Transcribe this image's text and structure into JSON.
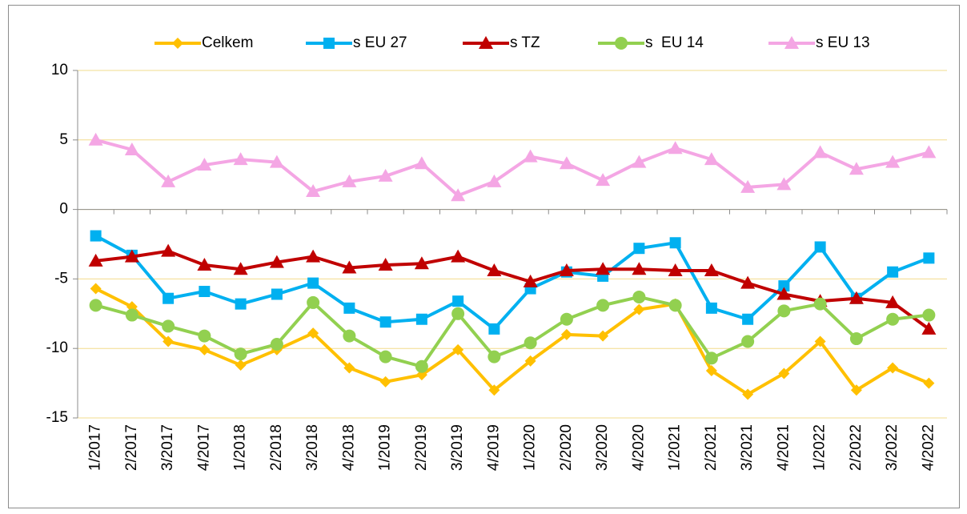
{
  "chart_data": {
    "type": "line",
    "categories": [
      "1/2017",
      "2/2017",
      "3/2017",
      "4/2017",
      "1/2018",
      "2/2018",
      "3/2018",
      "4/2018",
      "1/2019",
      "2/2019",
      "3/2019",
      "4/2019",
      "1/2020",
      "2/2020",
      "3/2020",
      "4/2020",
      "1/2021",
      "2/2021",
      "3/2021",
      "4/2021",
      "1/2022",
      "2/2022",
      "3/2022",
      "4/2022"
    ],
    "series": [
      {
        "name": "Celkem",
        "color": "#ffc000",
        "marker": "diamond",
        "values": [
          -5.7,
          -7.0,
          -9.5,
          -10.1,
          -11.2,
          -10.1,
          -8.9,
          -11.4,
          -12.4,
          -11.9,
          -10.1,
          -13.0,
          -10.9,
          -9.0,
          -9.1,
          -7.2,
          -6.8,
          -11.6,
          -13.3,
          -11.8,
          -9.5,
          -13.0,
          -11.4,
          -12.5
        ]
      },
      {
        "name": "s EU 27",
        "color": "#00b0f0",
        "marker": "square",
        "values": [
          -1.9,
          -3.3,
          -6.4,
          -5.9,
          -6.8,
          -6.1,
          -5.3,
          -7.1,
          -8.1,
          -7.9,
          -6.6,
          -8.6,
          -5.7,
          -4.5,
          -4.8,
          -2.8,
          -2.4,
          -7.1,
          -7.9,
          -5.5,
          -2.7,
          -6.4,
          -4.5,
          -3.5
        ]
      },
      {
        "name": "s TZ",
        "color": "#c00000",
        "marker": "triangle",
        "values": [
          -3.7,
          -3.4,
          -3.0,
          -4.0,
          -4.3,
          -3.8,
          -3.4,
          -4.2,
          -4.0,
          -3.9,
          -3.4,
          -4.4,
          -5.2,
          -4.4,
          -4.3,
          -4.3,
          -4.4,
          -4.4,
          -5.3,
          -6.1,
          -6.6,
          -6.4,
          -6.7,
          -8.6
        ]
      },
      {
        "name": "s  EU 14",
        "color": "#92d050",
        "marker": "circle",
        "values": [
          -6.9,
          -7.6,
          -8.4,
          -9.1,
          -10.4,
          -9.7,
          -6.7,
          -9.1,
          -10.6,
          -11.3,
          -7.5,
          -10.6,
          -9.6,
          -7.9,
          -6.9,
          -6.3,
          -6.9,
          -10.7,
          -9.5,
          -7.3,
          -6.8,
          -9.3,
          -7.9,
          -7.6
        ]
      },
      {
        "name": "s EU 13",
        "color": "#f4a6e4",
        "marker": "triangle",
        "values": [
          5.0,
          4.3,
          2.0,
          3.2,
          3.6,
          3.4,
          1.3,
          2.0,
          2.4,
          3.3,
          1.0,
          2.0,
          3.8,
          3.3,
          2.1,
          3.4,
          4.4,
          3.6,
          1.6,
          1.8,
          4.1,
          2.9,
          3.4,
          4.1
        ]
      }
    ],
    "ylim": [
      -15,
      10
    ],
    "yticks": [
      -15,
      -10,
      -5,
      0,
      5,
      10
    ],
    "grid": true,
    "legend": "top"
  }
}
